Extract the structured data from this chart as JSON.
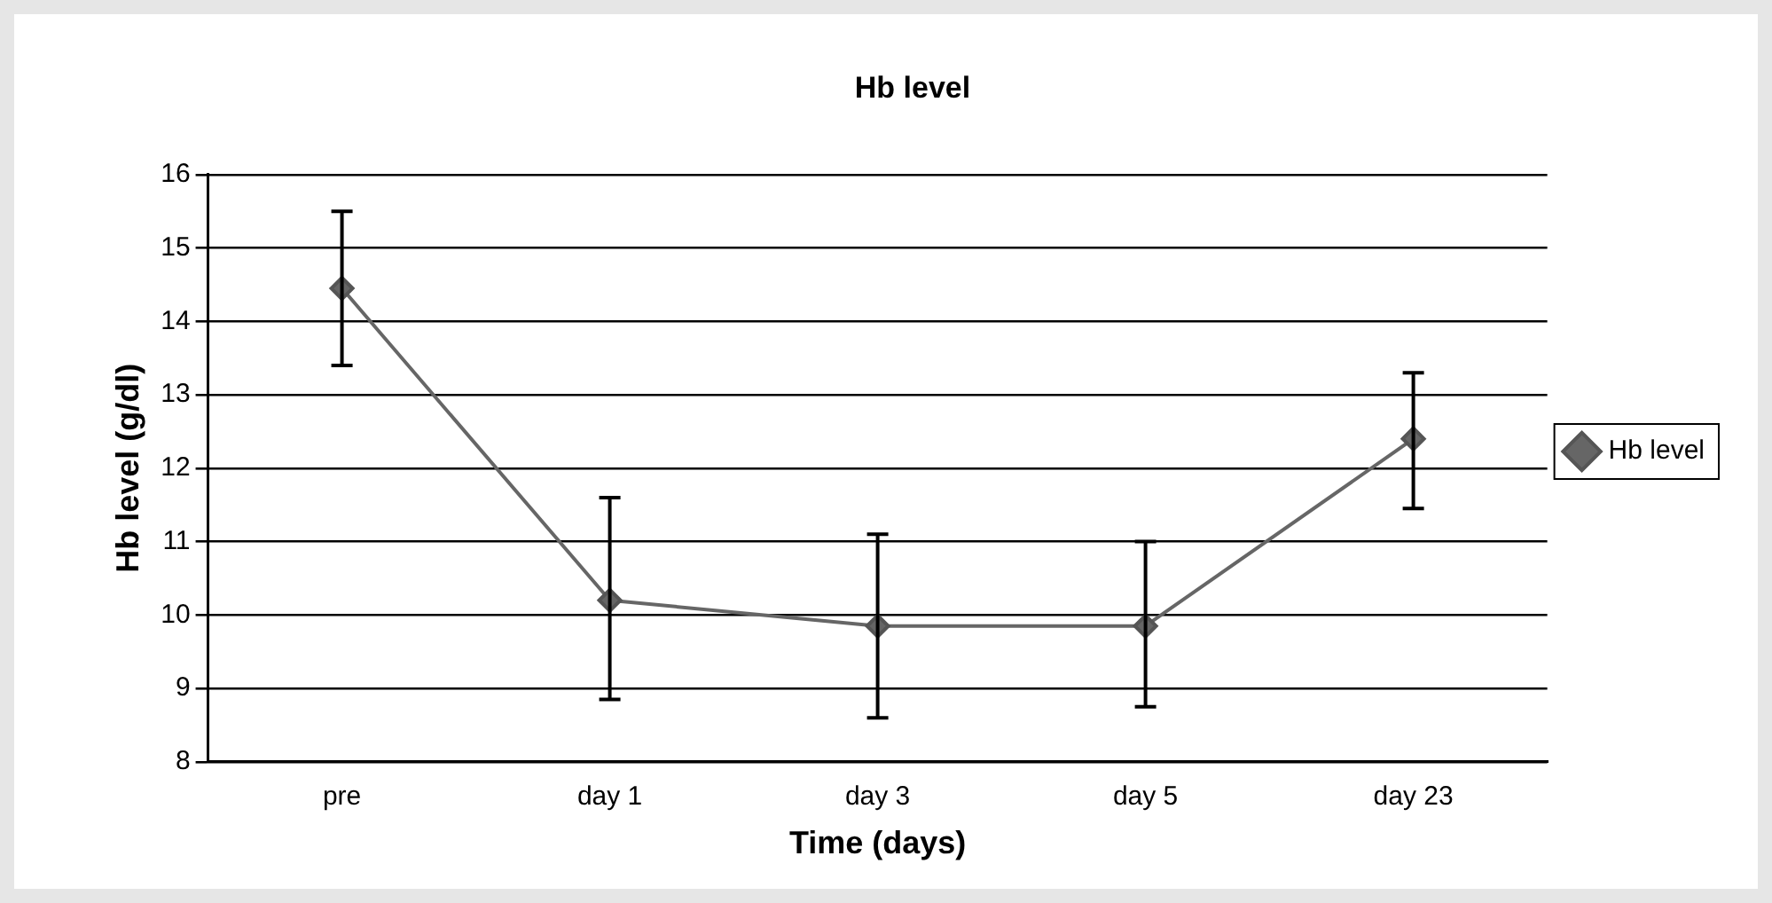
{
  "chart_data": {
    "type": "line",
    "title": "Hb level",
    "xlabel": "Time (days)",
    "ylabel": "Hb level (g/dl)",
    "categories": [
      "pre",
      "day 1",
      "day 3",
      "day 5",
      "day 23"
    ],
    "series": [
      {
        "name": "Hb level",
        "color": "#666666",
        "values": [
          14.45,
          10.2,
          9.85,
          9.85,
          12.4
        ],
        "errors": [
          [
            13.4,
            15.5
          ],
          [
            8.85,
            11.6
          ],
          [
            8.6,
            11.1
          ],
          [
            8.75,
            11.0
          ],
          [
            11.45,
            13.3
          ]
        ]
      }
    ],
    "ylim": [
      8,
      16
    ],
    "yticks": [
      8,
      9,
      10,
      11,
      12,
      13,
      14,
      15,
      16
    ],
    "grid": "y",
    "legend": "right",
    "marker": "diamond",
    "line_style": "solid"
  }
}
